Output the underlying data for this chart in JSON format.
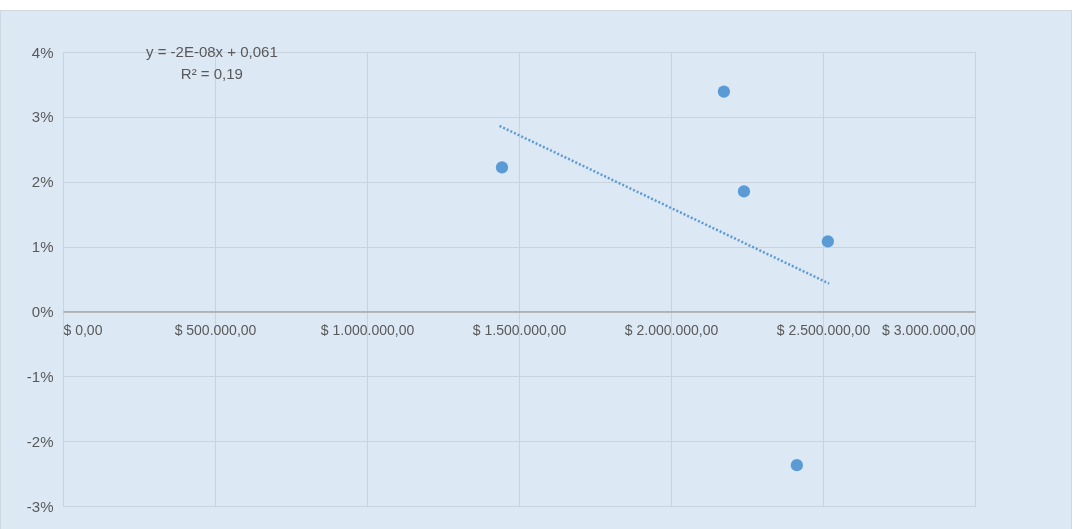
{
  "chart_data": {
    "type": "scatter",
    "xlim": [
      0,
      3000000
    ],
    "ylim": [
      -3,
      4
    ],
    "xticks": [
      {
        "value": 0,
        "label": "$ 0,00"
      },
      {
        "value": 500000,
        "label": "$ 500.000,00"
      },
      {
        "value": 1000000,
        "label": "$ 1.000.000,00"
      },
      {
        "value": 1500000,
        "label": "$ 1.500.000,00"
      },
      {
        "value": 2000000,
        "label": "$ 2.000.000,00"
      },
      {
        "value": 2500000,
        "label": "$ 2.500.000,00"
      },
      {
        "value": 3000000,
        "label": "$ 3.000.000,00"
      }
    ],
    "yticks": [
      {
        "value": -3,
        "label": "-3%"
      },
      {
        "value": -2,
        "label": "-2%"
      },
      {
        "value": -1,
        "label": "-1%"
      },
      {
        "value": 0,
        "label": "0%"
      },
      {
        "value": 1,
        "label": "1%"
      },
      {
        "value": 2,
        "label": "2%"
      },
      {
        "value": 3,
        "label": "3%"
      },
      {
        "value": 4,
        "label": "4%"
      }
    ],
    "grid": true,
    "annotations": [
      "y = -2E-08x + 0,061",
      "R² = 0,19"
    ],
    "x": [
      1444000,
      2174000,
      2240000,
      2414000,
      2516000
    ],
    "series": [
      {
        "color": "#5b9bd5",
        "marker": "circle",
        "values": [
          2.22,
          3.39,
          1.85,
          -2.37,
          1.08
        ]
      },
      {
        "type": "line",
        "color": "#5b9bd5",
        "line_style": "dotted",
        "x": [
          1436000,
          2520000
        ],
        "values": [
          2.86,
          0.43
        ]
      }
    ]
  }
}
